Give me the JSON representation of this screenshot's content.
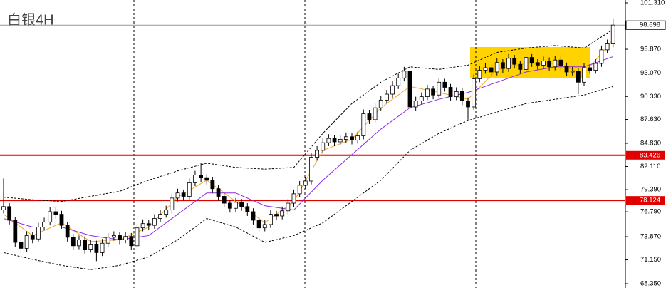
{
  "chart_data": {
    "type": "candlestick",
    "title": "白银4H",
    "ylim": [
      68.35,
      101.31
    ],
    "yticks": [
      {
        "value": 101.31,
        "label": "101.310"
      },
      {
        "value": 95.87,
        "label": "95.870"
      },
      {
        "value": 93.07,
        "label": "93.070"
      },
      {
        "value": 90.33,
        "label": "90.330"
      },
      {
        "value": 87.63,
        "label": "87.630"
      },
      {
        "value": 84.83,
        "label": "84.830"
      },
      {
        "value": 82.11,
        "label": "82.110"
      },
      {
        "value": 79.39,
        "label": "79.390"
      },
      {
        "value": 76.79,
        "label": "76.790"
      },
      {
        "value": 73.87,
        "label": "73.870"
      },
      {
        "value": 71.15,
        "label": "71.150"
      },
      {
        "value": 68.35,
        "label": "68.350"
      }
    ],
    "candles": [
      [
        77.0,
        80.7,
        76.6,
        77.4
      ],
      [
        77.4,
        77.8,
        75.3,
        75.8
      ],
      [
        75.8,
        76.2,
        72.7,
        73.2
      ],
      [
        73.2,
        73.6,
        71.8,
        72.5
      ],
      [
        72.5,
        74.5,
        72.1,
        74.0
      ],
      [
        74.0,
        74.4,
        73.1,
        73.6
      ],
      [
        73.6,
        75.5,
        73.2,
        75.0
      ],
      [
        75.0,
        76.1,
        74.6,
        75.6
      ],
      [
        75.6,
        77.3,
        75.2,
        76.8
      ],
      [
        76.8,
        77.4,
        76.0,
        76.5
      ],
      [
        76.5,
        76.9,
        74.8,
        75.2
      ],
      [
        75.2,
        75.6,
        73.3,
        73.8
      ],
      [
        73.8,
        74.2,
        72.3,
        72.8
      ],
      [
        72.8,
        74.0,
        72.4,
        73.5
      ],
      [
        73.5,
        73.9,
        71.9,
        72.4
      ],
      [
        72.4,
        73.5,
        72.0,
        73.0
      ],
      [
        73.0,
        73.4,
        71.0,
        72.0
      ],
      [
        72.0,
        73.6,
        71.6,
        73.1
      ],
      [
        73.1,
        74.3,
        72.7,
        73.8
      ],
      [
        73.8,
        74.5,
        73.4,
        74.0
      ],
      [
        74.0,
        74.4,
        73.0,
        73.5
      ],
      [
        73.5,
        74.4,
        73.1,
        73.9
      ],
      [
        73.9,
        74.3,
        72.3,
        72.8
      ],
      [
        72.8,
        75.4,
        72.4,
        74.9
      ],
      [
        74.9,
        75.9,
        74.5,
        75.4
      ],
      [
        75.4,
        75.8,
        74.7,
        75.2
      ],
      [
        75.2,
        76.5,
        74.8,
        76.0
      ],
      [
        76.0,
        77.0,
        75.6,
        76.5
      ],
      [
        76.5,
        77.5,
        76.1,
        77.0
      ],
      [
        77.0,
        78.9,
        76.6,
        78.4
      ],
      [
        78.4,
        79.5,
        78.0,
        79.0
      ],
      [
        79.0,
        79.4,
        78.1,
        78.6
      ],
      [
        78.6,
        80.7,
        78.2,
        80.2
      ],
      [
        80.2,
        81.6,
        79.8,
        81.1
      ],
      [
        81.1,
        82.5,
        80.3,
        80.8
      ],
      [
        80.8,
        81.2,
        80.0,
        80.5
      ],
      [
        80.5,
        80.9,
        79.0,
        79.5
      ],
      [
        79.5,
        79.9,
        78.1,
        78.6
      ],
      [
        78.6,
        79.0,
        77.3,
        77.8
      ],
      [
        77.8,
        78.2,
        76.7,
        77.2
      ],
      [
        77.2,
        78.4,
        76.8,
        77.9
      ],
      [
        77.9,
        78.3,
        76.9,
        77.4
      ],
      [
        77.4,
        77.8,
        76.3,
        76.8
      ],
      [
        76.8,
        77.2,
        75.3,
        75.8
      ],
      [
        75.8,
        76.2,
        74.4,
        74.9
      ],
      [
        74.9,
        75.8,
        74.5,
        75.3
      ],
      [
        75.3,
        77.0,
        74.9,
        76.5
      ],
      [
        76.5,
        76.9,
        75.8,
        76.3
      ],
      [
        76.3,
        77.4,
        75.9,
        76.9
      ],
      [
        76.9,
        78.3,
        76.5,
        77.8
      ],
      [
        77.8,
        79.4,
        77.4,
        78.9
      ],
      [
        78.9,
        80.4,
        78.5,
        79.9
      ],
      [
        79.9,
        80.9,
        79.5,
        80.4
      ],
      [
        80.4,
        83.7,
        80.0,
        83.2
      ],
      [
        83.2,
        84.5,
        82.8,
        84.0
      ],
      [
        84.0,
        85.4,
        83.6,
        84.9
      ],
      [
        84.9,
        85.9,
        84.5,
        85.4
      ],
      [
        85.4,
        85.8,
        84.5,
        85.0
      ],
      [
        85.0,
        85.8,
        84.6,
        85.3
      ],
      [
        85.3,
        86.1,
        84.9,
        85.6
      ],
      [
        85.6,
        86.0,
        84.7,
        85.2
      ],
      [
        85.2,
        86.2,
        84.8,
        85.7
      ],
      [
        85.7,
        88.8,
        85.3,
        88.3
      ],
      [
        88.3,
        88.7,
        87.1,
        87.6
      ],
      [
        87.6,
        89.5,
        87.2,
        89.0
      ],
      [
        89.0,
        90.4,
        88.6,
        89.9
      ],
      [
        89.9,
        91.1,
        89.5,
        90.6
      ],
      [
        90.6,
        92.1,
        90.2,
        91.6
      ],
      [
        91.6,
        93.0,
        91.2,
        92.5
      ],
      [
        92.5,
        93.8,
        92.1,
        93.3
      ],
      [
        93.3,
        93.7,
        86.6,
        89.1
      ],
      [
        89.1,
        90.3,
        88.6,
        89.8
      ],
      [
        89.8,
        90.8,
        89.4,
        90.3
      ],
      [
        90.3,
        91.7,
        89.9,
        91.2
      ],
      [
        91.2,
        91.6,
        90.0,
        90.5
      ],
      [
        90.5,
        92.5,
        90.1,
        92.0
      ],
      [
        92.0,
        92.4,
        90.9,
        91.4
      ],
      [
        91.4,
        91.8,
        89.8,
        90.3
      ],
      [
        90.3,
        91.4,
        89.9,
        90.9
      ],
      [
        90.9,
        91.3,
        89.3,
        89.8
      ],
      [
        89.8,
        90.2,
        87.6,
        89.1
      ],
      [
        89.1,
        92.9,
        88.7,
        92.4
      ],
      [
        92.4,
        93.9,
        92.0,
        93.4
      ],
      [
        93.4,
        94.2,
        93.0,
        93.7
      ],
      [
        93.7,
        94.1,
        92.7,
        93.2
      ],
      [
        93.2,
        94.8,
        92.8,
        94.3
      ],
      [
        94.3,
        94.7,
        93.1,
        93.6
      ],
      [
        93.6,
        95.3,
        93.2,
        94.8
      ],
      [
        94.8,
        95.2,
        93.6,
        94.1
      ],
      [
        94.1,
        94.5,
        93.0,
        93.5
      ],
      [
        93.5,
        95.4,
        93.1,
        94.9
      ],
      [
        94.9,
        95.3,
        93.8,
        94.3
      ],
      [
        94.3,
        94.7,
        93.5,
        94.0
      ],
      [
        94.0,
        95.0,
        93.6,
        94.5
      ],
      [
        94.5,
        94.9,
        93.3,
        93.8
      ],
      [
        93.8,
        95.1,
        93.4,
        94.6
      ],
      [
        94.6,
        95.0,
        93.4,
        93.9
      ],
      [
        93.9,
        94.3,
        92.7,
        93.2
      ],
      [
        93.2,
        93.8,
        92.8,
        93.3
      ],
      [
        93.3,
        93.7,
        90.6,
        92.0
      ],
      [
        92.0,
        94.2,
        91.6,
        93.7
      ],
      [
        93.7,
        94.1,
        93.0,
        93.4
      ],
      [
        93.4,
        94.7,
        93.0,
        94.2
      ],
      [
        94.2,
        96.3,
        93.8,
        95.8
      ],
      [
        95.8,
        97.0,
        95.4,
        96.5
      ],
      [
        96.5,
        99.4,
        96.1,
        98.7
      ]
    ],
    "line_x": [
      0,
      5,
      10,
      15,
      20,
      25,
      30,
      35,
      40,
      45,
      50,
      55,
      60,
      65,
      70,
      75,
      80,
      85,
      90,
      95,
      100,
      105
    ],
    "series": [
      {
        "color": "#000000",
        "dash": true,
        "values": [
          78.5,
          78.2,
          78.0,
          78.6,
          79.2,
          80.5,
          81.6,
          82.5,
          82.0,
          81.8,
          82.0,
          86.0,
          89.5,
          92.0,
          93.8,
          93.5,
          94.0,
          95.5,
          96.0,
          96.3,
          96.0,
          98.2
        ]
      },
      {
        "color": "#000000",
        "dash": true,
        "values": [
          72.0,
          71.2,
          70.5,
          70.0,
          70.5,
          71.5,
          73.5,
          76.0,
          75.0,
          73.2,
          74.0,
          75.5,
          78.0,
          80.5,
          84.0,
          86.0,
          87.5,
          88.5,
          89.5,
          90.0,
          90.5,
          91.5
        ]
      },
      {
        "color": "#f5a623",
        "dash": false,
        "values": [
          76.5,
          74.0,
          75.5,
          73.3,
          73.5,
          75.0,
          78.5,
          80.5,
          78.0,
          75.5,
          78.0,
          84.0,
          85.3,
          89.0,
          91.5,
          90.8,
          90.0,
          93.5,
          94.2,
          94.2,
          93.0,
          97.0
        ]
      },
      {
        "color": "#8a2be2",
        "dash": false,
        "values": [
          76.0,
          75.0,
          75.0,
          74.0,
          73.5,
          74.0,
          76.5,
          79.0,
          79.0,
          77.5,
          77.0,
          80.5,
          83.5,
          86.5,
          89.0,
          90.0,
          90.8,
          92.0,
          93.2,
          93.8,
          93.8,
          95.0
        ]
      }
    ],
    "hlines": [
      {
        "value": 83.426,
        "label": "83.426",
        "color": "#e00000"
      },
      {
        "value": 78.124,
        "label": "78.124",
        "color": "#e00000"
      }
    ],
    "price_line": {
      "value": 98.698,
      "label": "98.698",
      "color": "#8a9aa8"
    }
  }
}
